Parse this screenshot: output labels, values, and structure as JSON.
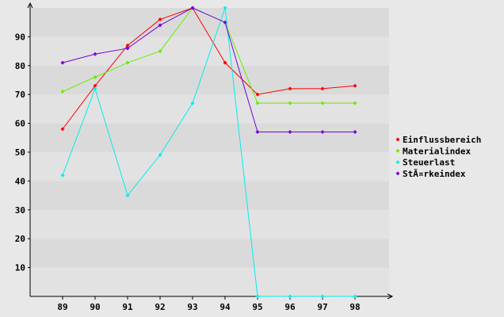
{
  "chart_data": {
    "type": "line",
    "title": "",
    "xlabel": "",
    "ylabel": "",
    "categories": [
      "89",
      "90",
      "91",
      "92",
      "93",
      "94",
      "95",
      "96",
      "97",
      "98"
    ],
    "y_ticks": [
      10,
      20,
      30,
      40,
      50,
      60,
      70,
      80,
      90
    ],
    "ylim": [
      0,
      100
    ],
    "grid": "horizontal bands",
    "legend_position": "right",
    "series": [
      {
        "name": "Einflussbereich",
        "color": "#ff0000",
        "values": [
          58,
          73,
          87,
          96,
          100,
          81,
          70,
          72,
          72,
          73
        ]
      },
      {
        "name": "Materialindex",
        "color": "#66ee00",
        "values": [
          71,
          76,
          81,
          85,
          100,
          95,
          67,
          67,
          67,
          67
        ]
      },
      {
        "name": "Steuerlast",
        "color": "#00eeee",
        "values": [
          42,
          72,
          35,
          49,
          67,
          100,
          0,
          0,
          0,
          0
        ]
      },
      {
        "name": "StÃ¤rkeindex",
        "color": "#7700dd",
        "values": [
          81,
          84,
          86,
          94,
          100,
          95,
          57,
          57,
          57,
          57
        ]
      }
    ]
  }
}
